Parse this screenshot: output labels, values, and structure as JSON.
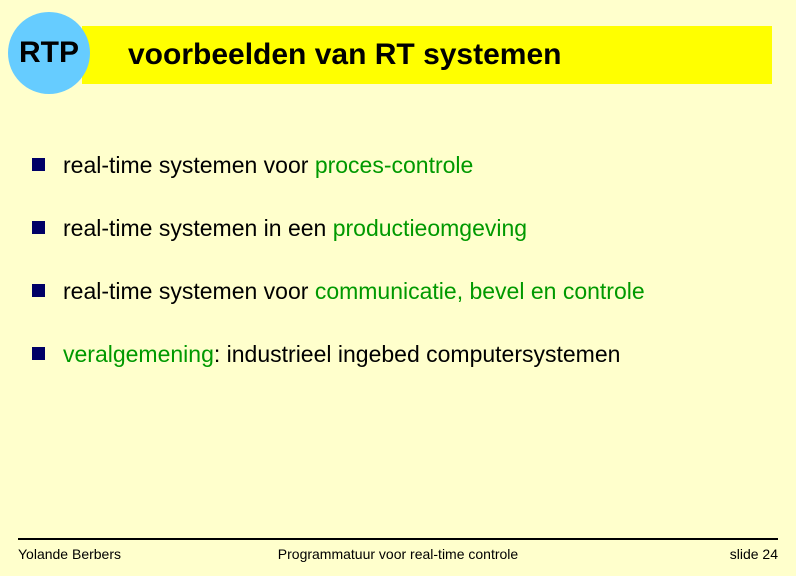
{
  "colors": {
    "page_bg": "#ffffcc",
    "badge_bg": "#66ccff",
    "badge_text": "#000000",
    "title_bg": "#ffff00",
    "title_text": "#000000",
    "bullet": "#000066",
    "text_black": "#000000",
    "text_green": "#009900",
    "rule": "#000000"
  },
  "typography": {
    "badge_fontsize": 30,
    "title_fontsize": 30,
    "body_fontsize": 23,
    "footer_fontsize": 14,
    "font_family": "Arial"
  },
  "badge": {
    "label": "RTP"
  },
  "title": "voorbeelden van RT systemen",
  "bullets": [
    {
      "parts": [
        {
          "text": "real-time systemen voor ",
          "cls": "fg-black"
        },
        {
          "text": "proces-controle",
          "cls": "fg-green"
        }
      ]
    },
    {
      "parts": [
        {
          "text": "real-time systemen in een ",
          "cls": "fg-black"
        },
        {
          "text": "productieomgeving",
          "cls": "fg-green"
        }
      ]
    },
    {
      "parts": [
        {
          "text": "real-time systemen voor ",
          "cls": "fg-black"
        },
        {
          "text": "communicatie, bevel en controle",
          "cls": "fg-green"
        }
      ]
    },
    {
      "parts": [
        {
          "text": "veralgemening",
          "cls": "fg-green"
        },
        {
          "text": ": industrieel ingebed computersystemen",
          "cls": "fg-black"
        }
      ]
    }
  ],
  "footer": {
    "left": "Yolande Berbers",
    "center": "Programmatuur voor real-time controle",
    "right": "slide 24"
  }
}
